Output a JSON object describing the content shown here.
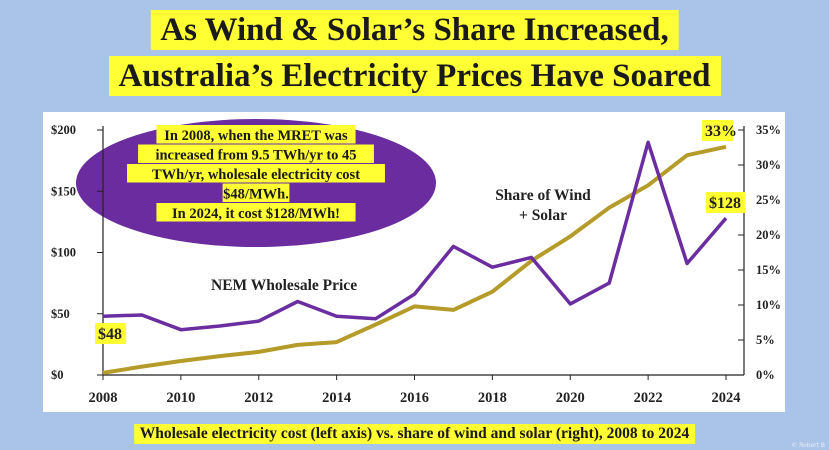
{
  "title": {
    "line1": "As Wind & Solar’s Share Increased,",
    "line2": "Australia’s Electricity Prices Have Soared"
  },
  "caption": "Wholesale electricity cost (left axis) vs. share of wind and solar (right), 2008 to 2024",
  "credit": "© Robert B",
  "annotation": {
    "lines": [
      "In 2008, when the MRET was",
      "increased from 9.5 TWh/yr to 45",
      "TWh/yr, wholesale electricity cost",
      "$48/MWh.",
      "In 2024, it cost $128/MWh!"
    ]
  },
  "colors": {
    "price": "#6a2ea0",
    "share": "#b59b2a",
    "ellipse": "#6b2ca0",
    "highlight": "#ffff33"
  },
  "chart_data": {
    "type": "line",
    "x": [
      2008,
      2009,
      2010,
      2011,
      2012,
      2013,
      2014,
      2015,
      2016,
      2017,
      2018,
      2019,
      2020,
      2021,
      2022,
      2023,
      2024
    ],
    "x_ticks": [
      "2008",
      "2010",
      "2012",
      "2014",
      "2016",
      "2018",
      "2020",
      "2022",
      "2024"
    ],
    "y_left_ticks": [
      "$0",
      "$50",
      "$100",
      "$150",
      "$200"
    ],
    "y_left_lim": [
      0,
      200
    ],
    "y_right_ticks": [
      "0%",
      "5%",
      "10%",
      "15%",
      "20%",
      "25%",
      "30%",
      "35%"
    ],
    "y_right_lim": [
      0,
      35
    ],
    "series": [
      {
        "name": "NEM Wholesale Price",
        "axis": "left",
        "values": [
          48,
          49,
          37,
          40,
          44,
          60,
          48,
          46,
          66,
          105,
          88,
          96,
          58,
          75,
          190,
          91,
          128
        ]
      },
      {
        "name": "Share of Wind + Solar",
        "name_lines": [
          "Share of Wind",
          "+ Solar"
        ],
        "axis": "right",
        "values": [
          0.3,
          1.2,
          2.0,
          2.7,
          3.3,
          4.3,
          4.7,
          7.2,
          9.8,
          9.3,
          11.9,
          16.3,
          19.8,
          23.9,
          27.1,
          31.4,
          32.6
        ]
      }
    ],
    "data_labels": {
      "price_start": "$48",
      "price_end": "$128",
      "share_end": "33%"
    },
    "grid": false
  }
}
